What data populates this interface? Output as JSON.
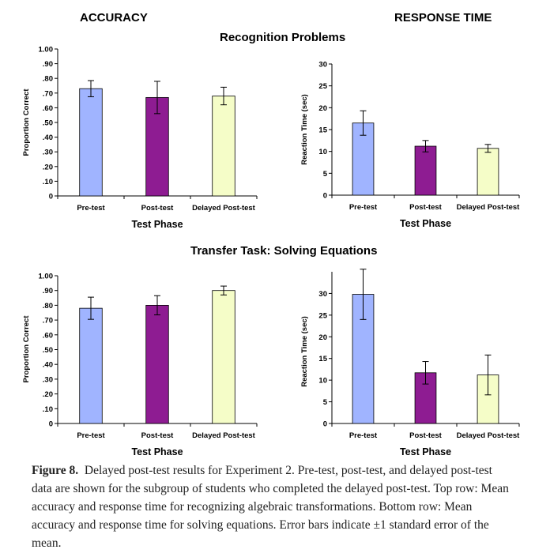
{
  "headers": {
    "accuracy": "ACCURACY",
    "response_time": "RESPONSE TIME",
    "top_row": "Recognition Problems",
    "bottom_row": "Transfer Task:  Solving Equations"
  },
  "caption": {
    "label": "Figure 8.",
    "text": "Delayed post-test results for Experiment 2. Pre-test, post-test, and delayed post-test data are shown for the subgroup of students who completed the delayed post-test. Top row: Mean accuracy and response time for recognizing algebraic transformations. Bottom row: Mean accuracy and response time for solving equations. Error bars indicate ±1 standard error of the mean."
  },
  "chart_data": [
    {
      "type": "bar",
      "id": "recog-accuracy",
      "title": "",
      "xlabel": "Test Phase",
      "ylabel": "Proportion Correct",
      "categories": [
        "Pre-test",
        "Post-test",
        "Delayed Post-test"
      ],
      "values": [
        0.73,
        0.67,
        0.68
      ],
      "errors": [
        0.055,
        0.11,
        0.06
      ],
      "ylim": [
        0,
        1.0
      ],
      "yticks": [
        0,
        0.1,
        0.2,
        0.3,
        0.4,
        0.5,
        0.6,
        0.7,
        0.8,
        0.9,
        1.0
      ],
      "yticklabels": [
        "0",
        ".10",
        ".20",
        ".30",
        ".40",
        ".50",
        ".60",
        ".70",
        ".80",
        ".90",
        "1.00"
      ],
      "colors": [
        "#a0b4ff",
        "#8e1c92",
        "#f5fdc8"
      ],
      "grid": false
    },
    {
      "type": "bar",
      "id": "recog-rt",
      "title": "",
      "xlabel": "Test Phase",
      "ylabel": "Reaction Time (sec)",
      "categories": [
        "Pre-test",
        "Post-test",
        "Delayed Post-test"
      ],
      "values": [
        16.5,
        11.2,
        10.7
      ],
      "errors": [
        2.8,
        1.3,
        0.9
      ],
      "ylim": [
        0,
        30
      ],
      "yticks": [
        0,
        5,
        10,
        15,
        20,
        25,
        30
      ],
      "yticklabels": [
        "0",
        "5",
        "10",
        "15",
        "20",
        "25",
        "30"
      ],
      "colors": [
        "#a0b4ff",
        "#8e1c92",
        "#f5fdc8"
      ],
      "grid": false
    },
    {
      "type": "bar",
      "id": "transfer-accuracy",
      "title": "",
      "xlabel": "Test Phase",
      "ylabel": "Proportion Correct",
      "categories": [
        "Pre-test",
        "Post-test",
        "Delayed Post-test"
      ],
      "values": [
        0.78,
        0.8,
        0.9
      ],
      "errors": [
        0.075,
        0.065,
        0.03
      ],
      "ylim": [
        0,
        1.0
      ],
      "yticks": [
        0,
        0.1,
        0.2,
        0.3,
        0.4,
        0.5,
        0.6,
        0.7,
        0.8,
        0.9,
        1.0
      ],
      "yticklabels": [
        "0",
        ".10",
        ".20",
        ".30",
        ".40",
        ".50",
        ".60",
        ".70",
        ".80",
        ".90",
        "1.00"
      ],
      "colors": [
        "#a0b4ff",
        "#8e1c92",
        "#f5fdc8"
      ],
      "grid": false
    },
    {
      "type": "bar",
      "id": "transfer-rt",
      "title": "",
      "xlabel": "Test Phase",
      "ylabel": "Reaction Time (sec)",
      "categories": [
        "Pre-test",
        "Post-test",
        "Delayed Post-test"
      ],
      "values": [
        29.8,
        11.7,
        11.2
      ],
      "errors": [
        5.8,
        2.6,
        4.6
      ],
      "ylim": [
        0,
        35
      ],
      "yticks": [
        0,
        5,
        10,
        15,
        20,
        25,
        30
      ],
      "yticklabels": [
        "0",
        "5",
        "10",
        "15",
        "20",
        "25",
        "30"
      ],
      "colors": [
        "#a0b4ff",
        "#8e1c92",
        "#f5fdc8"
      ],
      "grid": false
    }
  ]
}
